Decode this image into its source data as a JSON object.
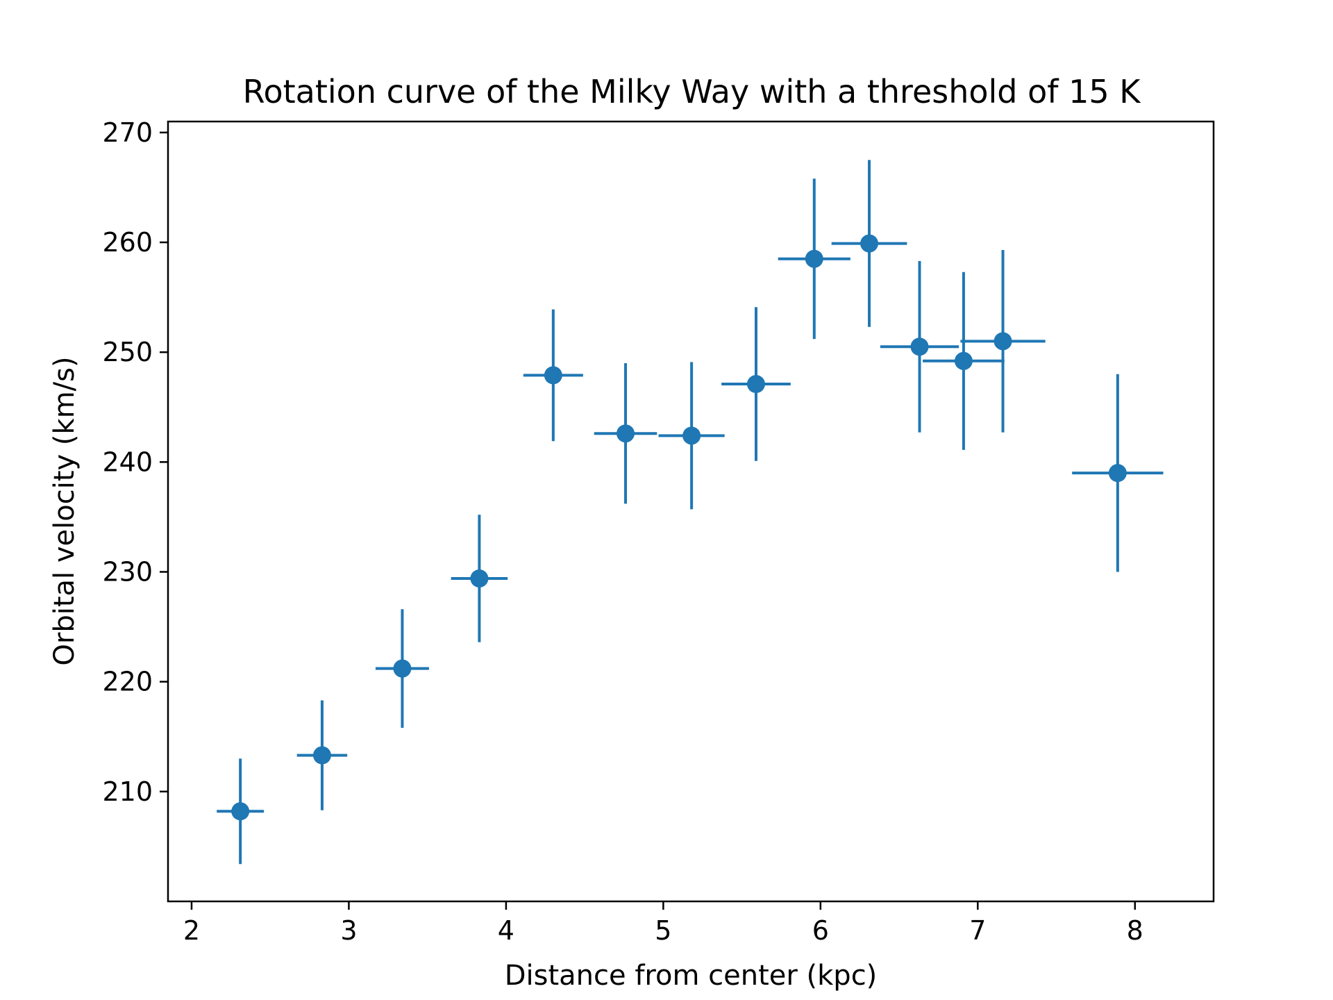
{
  "chart_data": {
    "type": "scatter",
    "title": "Rotation curve of the Milky Way with a threshold of 15 K",
    "xlabel": "Distance from center (kpc)",
    "ylabel": "Orbital velocity (km/s)",
    "xlim": [
      1.85,
      8.5
    ],
    "ylim": [
      200,
      271
    ],
    "xticks": [
      2,
      3,
      4,
      5,
      6,
      7,
      8
    ],
    "yticks": [
      210,
      220,
      230,
      240,
      250,
      260,
      270
    ],
    "grid": false,
    "legend": "none",
    "series": [
      {
        "color": "#1f77b4",
        "points": [
          {
            "x": 2.31,
            "y": 208.2,
            "xerr": 0.15,
            "yerr": 4.8
          },
          {
            "x": 2.83,
            "y": 213.3,
            "xerr": 0.16,
            "yerr": 5.0
          },
          {
            "x": 3.34,
            "y": 221.2,
            "xerr": 0.17,
            "yerr": 5.4
          },
          {
            "x": 3.83,
            "y": 229.4,
            "xerr": 0.18,
            "yerr": 5.8
          },
          {
            "x": 4.3,
            "y": 247.9,
            "xerr": 0.19,
            "yerr": 6.0
          },
          {
            "x": 4.76,
            "y": 242.6,
            "xerr": 0.2,
            "yerr": 6.4
          },
          {
            "x": 5.18,
            "y": 242.4,
            "xerr": 0.21,
            "yerr": 6.7
          },
          {
            "x": 5.59,
            "y": 247.1,
            "xerr": 0.22,
            "yerr": 7.0
          },
          {
            "x": 5.96,
            "y": 258.5,
            "xerr": 0.23,
            "yerr": 7.3
          },
          {
            "x": 6.31,
            "y": 259.9,
            "xerr": 0.24,
            "yerr": 7.6
          },
          {
            "x": 6.63,
            "y": 250.5,
            "xerr": 0.25,
            "yerr": 7.8
          },
          {
            "x": 6.91,
            "y": 249.2,
            "xerr": 0.26,
            "yerr": 8.1
          },
          {
            "x": 7.16,
            "y": 251.0,
            "xerr": 0.27,
            "yerr": 8.3
          },
          {
            "x": 7.89,
            "y": 239.0,
            "xerr": 0.29,
            "yerr": 9.0
          }
        ]
      }
    ]
  }
}
